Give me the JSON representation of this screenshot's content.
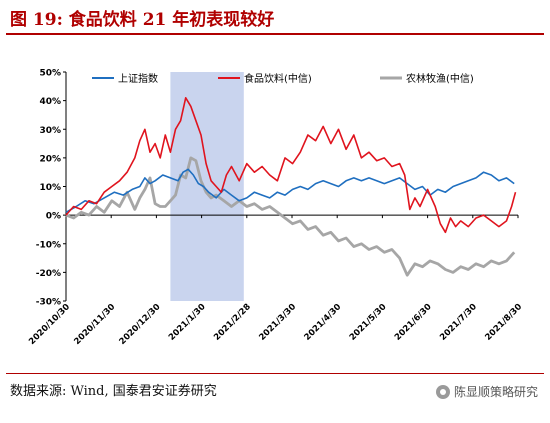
{
  "title": "图 19:  食品饮料 21 年初表现较好",
  "source": "数据来源:  Wind,  国泰君安证券研究",
  "watermark": "陈显顺策略研究",
  "chart_data": {
    "type": "line",
    "x_ticks": [
      "2020/10/30",
      "2020/11/30",
      "2020/12/30",
      "2021/1/30",
      "2021/2/28",
      "2021/3/30",
      "2021/4/30",
      "2021/5/30",
      "2021/6/30",
      "2021/7/30",
      "2021/8/30"
    ],
    "y_ticks": [
      "50%",
      "40%",
      "30%",
      "20%",
      "10%",
      "0%",
      "-10%",
      "-20%",
      "-30%"
    ],
    "ylim": [
      -30,
      50
    ],
    "x_range_days": [
      0,
      355
    ],
    "highlight_band": {
      "from": "2020/12/30",
      "to": "2021/2/28",
      "color": "#c9d4ee"
    },
    "legend_position": "top",
    "series": [
      {
        "name": "上证指数",
        "color": "#1f6fc0",
        "points": [
          [
            0,
            1
          ],
          [
            8,
            3
          ],
          [
            15,
            5
          ],
          [
            22,
            4
          ],
          [
            30,
            6
          ],
          [
            38,
            8
          ],
          [
            45,
            7
          ],
          [
            52,
            9
          ],
          [
            58,
            10
          ],
          [
            62,
            13
          ],
          [
            66,
            11
          ],
          [
            70,
            12
          ],
          [
            76,
            14
          ],
          [
            82,
            13
          ],
          [
            88,
            12
          ],
          [
            92,
            15
          ],
          [
            96,
            16
          ],
          [
            100,
            14
          ],
          [
            104,
            11
          ],
          [
            108,
            10
          ],
          [
            112,
            8
          ],
          [
            118,
            6
          ],
          [
            124,
            9
          ],
          [
            130,
            7
          ],
          [
            136,
            5
          ],
          [
            142,
            6
          ],
          [
            148,
            8
          ],
          [
            154,
            7
          ],
          [
            160,
            6
          ],
          [
            166,
            8
          ],
          [
            172,
            7
          ],
          [
            178,
            9
          ],
          [
            184,
            10
          ],
          [
            190,
            9
          ],
          [
            196,
            11
          ],
          [
            202,
            12
          ],
          [
            208,
            11
          ],
          [
            214,
            10
          ],
          [
            220,
            12
          ],
          [
            226,
            13
          ],
          [
            232,
            12
          ],
          [
            238,
            13
          ],
          [
            244,
            12
          ],
          [
            250,
            11
          ],
          [
            256,
            12
          ],
          [
            262,
            13
          ],
          [
            268,
            11
          ],
          [
            274,
            9
          ],
          [
            280,
            10
          ],
          [
            286,
            7
          ],
          [
            292,
            9
          ],
          [
            298,
            8
          ],
          [
            304,
            10
          ],
          [
            310,
            11
          ],
          [
            316,
            12
          ],
          [
            322,
            13
          ],
          [
            328,
            15
          ],
          [
            334,
            14
          ],
          [
            340,
            12
          ],
          [
            346,
            13
          ],
          [
            352,
            11
          ]
        ]
      },
      {
        "name": "食品饮料(中信)",
        "color": "#e0141e",
        "points": [
          [
            0,
            0
          ],
          [
            6,
            3
          ],
          [
            12,
            2
          ],
          [
            18,
            5
          ],
          [
            24,
            4
          ],
          [
            30,
            8
          ],
          [
            36,
            10
          ],
          [
            42,
            12
          ],
          [
            48,
            15
          ],
          [
            54,
            20
          ],
          [
            58,
            26
          ],
          [
            62,
            30
          ],
          [
            66,
            22
          ],
          [
            70,
            25
          ],
          [
            74,
            20
          ],
          [
            78,
            28
          ],
          [
            82,
            22
          ],
          [
            86,
            30
          ],
          [
            90,
            33
          ],
          [
            94,
            41
          ],
          [
            98,
            38
          ],
          [
            102,
            33
          ],
          [
            106,
            28
          ],
          [
            110,
            18
          ],
          [
            114,
            12
          ],
          [
            118,
            10
          ],
          [
            122,
            8
          ],
          [
            126,
            14
          ],
          [
            130,
            17
          ],
          [
            136,
            12
          ],
          [
            142,
            18
          ],
          [
            148,
            15
          ],
          [
            154,
            17
          ],
          [
            160,
            14
          ],
          [
            166,
            12
          ],
          [
            172,
            20
          ],
          [
            178,
            18
          ],
          [
            184,
            22
          ],
          [
            190,
            28
          ],
          [
            196,
            26
          ],
          [
            202,
            31
          ],
          [
            208,
            25
          ],
          [
            214,
            30
          ],
          [
            220,
            23
          ],
          [
            226,
            28
          ],
          [
            232,
            20
          ],
          [
            238,
            22
          ],
          [
            244,
            19
          ],
          [
            250,
            20
          ],
          [
            256,
            17
          ],
          [
            262,
            18
          ],
          [
            266,
            14
          ],
          [
            270,
            2
          ],
          [
            274,
            6
          ],
          [
            278,
            3
          ],
          [
            284,
            9
          ],
          [
            290,
            3
          ],
          [
            294,
            -3
          ],
          [
            298,
            -6
          ],
          [
            302,
            -1
          ],
          [
            306,
            -4
          ],
          [
            310,
            -2
          ],
          [
            316,
            -4
          ],
          [
            322,
            -1
          ],
          [
            328,
            0
          ],
          [
            334,
            -2
          ],
          [
            340,
            -4
          ],
          [
            346,
            -2
          ],
          [
            350,
            3
          ],
          [
            353,
            8
          ]
        ]
      },
      {
        "name": "农林牧渔(中信)",
        "color": "#a6a6a6",
        "points": [
          [
            0,
            0
          ],
          [
            6,
            -1
          ],
          [
            12,
            1
          ],
          [
            18,
            0
          ],
          [
            24,
            3
          ],
          [
            30,
            1
          ],
          [
            36,
            5
          ],
          [
            42,
            3
          ],
          [
            48,
            8
          ],
          [
            54,
            2
          ],
          [
            58,
            6
          ],
          [
            62,
            9
          ],
          [
            66,
            13
          ],
          [
            70,
            4
          ],
          [
            74,
            3
          ],
          [
            78,
            3
          ],
          [
            82,
            5
          ],
          [
            86,
            7
          ],
          [
            90,
            14
          ],
          [
            94,
            13
          ],
          [
            98,
            20
          ],
          [
            102,
            19
          ],
          [
            106,
            12
          ],
          [
            110,
            8
          ],
          [
            114,
            6
          ],
          [
            118,
            7
          ],
          [
            124,
            5
          ],
          [
            130,
            3
          ],
          [
            136,
            5
          ],
          [
            142,
            3
          ],
          [
            148,
            4
          ],
          [
            154,
            2
          ],
          [
            160,
            3
          ],
          [
            166,
            1
          ],
          [
            172,
            -1
          ],
          [
            178,
            -3
          ],
          [
            184,
            -2
          ],
          [
            190,
            -5
          ],
          [
            196,
            -4
          ],
          [
            202,
            -7
          ],
          [
            208,
            -6
          ],
          [
            214,
            -9
          ],
          [
            220,
            -8
          ],
          [
            226,
            -11
          ],
          [
            232,
            -10
          ],
          [
            238,
            -12
          ],
          [
            244,
            -11
          ],
          [
            250,
            -13
          ],
          [
            256,
            -12
          ],
          [
            262,
            -15
          ],
          [
            268,
            -21
          ],
          [
            274,
            -17
          ],
          [
            280,
            -18
          ],
          [
            286,
            -16
          ],
          [
            292,
            -17
          ],
          [
            298,
            -19
          ],
          [
            304,
            -20
          ],
          [
            310,
            -18
          ],
          [
            316,
            -19
          ],
          [
            322,
            -17
          ],
          [
            328,
            -18
          ],
          [
            334,
            -16
          ],
          [
            340,
            -17
          ],
          [
            346,
            -16
          ],
          [
            352,
            -13
          ]
        ]
      }
    ]
  }
}
